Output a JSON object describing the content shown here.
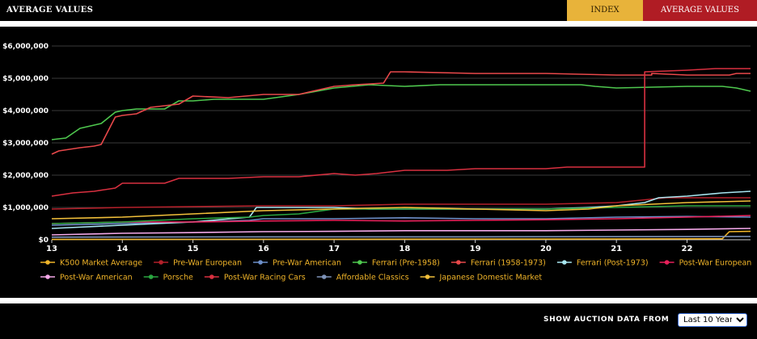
{
  "header": {
    "title": "AVERAGE VALUES",
    "tab_index": "INDEX",
    "tab_average": "AVERAGE VALUES"
  },
  "footer": {
    "label": "SHOW AUCTION DATA FROM",
    "select_value": "Last 10 Years"
  },
  "chart_data": {
    "type": "line",
    "x_ticks": [
      "13",
      "14",
      "15",
      "16",
      "17",
      "18",
      "19",
      "20",
      "21",
      "22"
    ],
    "xlim": [
      2013,
      2022.9
    ],
    "y_ticks": [
      "$0",
      "$1,000,000",
      "$2,000,000",
      "$3,000,000",
      "$4,000,000",
      "$5,000,000",
      "$6,000,000"
    ],
    "ylim": [
      0,
      6000000
    ],
    "grid": true,
    "legend_position": "bottom",
    "series": [
      {
        "name": "K500 Market Average",
        "color": "#f0b429",
        "points": [
          [
            2013,
            10000
          ],
          [
            2017,
            15000
          ],
          [
            2020,
            20000
          ],
          [
            2022.5,
            30000
          ],
          [
            2022.6,
            250000
          ],
          [
            2022.9,
            260000
          ]
        ]
      },
      {
        "name": "Pre-War European",
        "color": "#b3202a",
        "points": [
          [
            2013,
            950000
          ],
          [
            2014,
            1000000
          ],
          [
            2016,
            1050000
          ],
          [
            2017,
            1050000
          ],
          [
            2018,
            1100000
          ],
          [
            2019,
            1100000
          ],
          [
            2020,
            1100000
          ],
          [
            2021,
            1150000
          ],
          [
            2021.7,
            1300000
          ],
          [
            2022.9,
            1300000
          ]
        ]
      },
      {
        "name": "Pre-War American",
        "color": "#6d8fc9",
        "points": [
          [
            2013,
            450000
          ],
          [
            2014,
            500000
          ],
          [
            2015,
            550000
          ],
          [
            2015.8,
            600000
          ],
          [
            2016,
            650000
          ],
          [
            2017,
            650000
          ],
          [
            2018,
            680000
          ],
          [
            2019,
            650000
          ],
          [
            2020,
            650000
          ],
          [
            2021,
            700000
          ],
          [
            2022,
            720000
          ],
          [
            2022.9,
            700000
          ]
        ]
      },
      {
        "name": "Ferrari (Pre-1958)",
        "color": "#4fc94f",
        "points": [
          [
            2013,
            3100000
          ],
          [
            2013.2,
            3150000
          ],
          [
            2013.4,
            3450000
          ],
          [
            2013.7,
            3600000
          ],
          [
            2013.9,
            3950000
          ],
          [
            2014,
            4000000
          ],
          [
            2014.2,
            4050000
          ],
          [
            2014.6,
            4050000
          ],
          [
            2014.8,
            4300000
          ],
          [
            2015,
            4300000
          ],
          [
            2015.3,
            4350000
          ],
          [
            2016,
            4350000
          ],
          [
            2016.5,
            4500000
          ],
          [
            2017,
            4700000
          ],
          [
            2017.5,
            4800000
          ],
          [
            2018,
            4750000
          ],
          [
            2018.5,
            4800000
          ],
          [
            2019,
            4800000
          ],
          [
            2020,
            4800000
          ],
          [
            2020.5,
            4800000
          ],
          [
            2020.7,
            4750000
          ],
          [
            2021,
            4700000
          ],
          [
            2022,
            4750000
          ],
          [
            2022.5,
            4750000
          ],
          [
            2022.7,
            4700000
          ],
          [
            2022.9,
            4600000
          ]
        ]
      },
      {
        "name": "Ferrari (1958-1973)",
        "color": "#e8484a",
        "points": [
          [
            2013,
            2650000
          ],
          [
            2013.1,
            2750000
          ],
          [
            2013.4,
            2850000
          ],
          [
            2013.6,
            2900000
          ],
          [
            2013.7,
            2950000
          ],
          [
            2013.9,
            3800000
          ],
          [
            2014,
            3850000
          ],
          [
            2014.2,
            3900000
          ],
          [
            2014.4,
            4100000
          ],
          [
            2014.8,
            4200000
          ],
          [
            2015,
            4450000
          ],
          [
            2015.5,
            4400000
          ],
          [
            2016,
            4500000
          ],
          [
            2016.5,
            4500000
          ],
          [
            2017,
            4750000
          ],
          [
            2017.3,
            4800000
          ],
          [
            2017.7,
            4850000
          ],
          [
            2017.8,
            5200000
          ],
          [
            2018,
            5200000
          ],
          [
            2019,
            5150000
          ],
          [
            2020,
            5150000
          ],
          [
            2021,
            5100000
          ],
          [
            2021.5,
            5100000
          ],
          [
            2021.5,
            5150000
          ],
          [
            2022,
            5100000
          ],
          [
            2022.6,
            5100000
          ],
          [
            2022.7,
            5150000
          ],
          [
            2022.9,
            5150000
          ]
        ]
      },
      {
        "name": "Ferrari (Post-1973)",
        "color": "#a8e6f0",
        "points": [
          [
            2013,
            350000
          ],
          [
            2014,
            450000
          ],
          [
            2015,
            550000
          ],
          [
            2015.8,
            700000
          ],
          [
            2015.9,
            1000000
          ],
          [
            2016,
            1000000
          ],
          [
            2017,
            1000000
          ],
          [
            2017.5,
            950000
          ],
          [
            2018,
            950000
          ],
          [
            2019,
            950000
          ],
          [
            2020,
            950000
          ],
          [
            2020.6,
            1000000
          ],
          [
            2021,
            1050000
          ],
          [
            2021.4,
            1150000
          ],
          [
            2021.6,
            1300000
          ],
          [
            2022,
            1350000
          ],
          [
            2022.5,
            1450000
          ],
          [
            2022.9,
            1500000
          ]
        ]
      },
      {
        "name": "Post-War European",
        "color": "#e8205a",
        "points": [
          [
            2013,
            500000
          ],
          [
            2014,
            550000
          ],
          [
            2015,
            550000
          ],
          [
            2016,
            580000
          ],
          [
            2017,
            600000
          ],
          [
            2018,
            580000
          ],
          [
            2019,
            600000
          ],
          [
            2020,
            620000
          ],
          [
            2021,
            650000
          ],
          [
            2022,
            700000
          ],
          [
            2022.9,
            750000
          ]
        ]
      },
      {
        "name": "Post-War American",
        "color": "#f4a8e8",
        "points": [
          [
            2013,
            150000
          ],
          [
            2014,
            200000
          ],
          [
            2015,
            220000
          ],
          [
            2016,
            250000
          ],
          [
            2017,
            260000
          ],
          [
            2018,
            280000
          ],
          [
            2019,
            280000
          ],
          [
            2020,
            280000
          ],
          [
            2021,
            300000
          ],
          [
            2022,
            320000
          ],
          [
            2022.9,
            350000
          ]
        ]
      },
      {
        "name": "Porsche",
        "color": "#2aa640",
        "points": [
          [
            2013,
            500000
          ],
          [
            2014,
            550000
          ],
          [
            2015,
            650000
          ],
          [
            2015.8,
            700000
          ],
          [
            2016,
            750000
          ],
          [
            2016.5,
            800000
          ],
          [
            2017,
            950000
          ],
          [
            2018,
            950000
          ],
          [
            2019,
            950000
          ],
          [
            2020,
            950000
          ],
          [
            2021,
            1000000
          ],
          [
            2022,
            1050000
          ],
          [
            2022.9,
            1050000
          ]
        ]
      },
      {
        "name": "Post-War Racing Cars",
        "color": "#d93040",
        "points": [
          [
            2013,
            1350000
          ],
          [
            2013.3,
            1450000
          ],
          [
            2013.6,
            1500000
          ],
          [
            2013.9,
            1600000
          ],
          [
            2014,
            1750000
          ],
          [
            2014.6,
            1750000
          ],
          [
            2014.8,
            1900000
          ],
          [
            2015.5,
            1900000
          ],
          [
            2016,
            1950000
          ],
          [
            2016.5,
            1950000
          ],
          [
            2017,
            2050000
          ],
          [
            2017.3,
            2000000
          ],
          [
            2017.6,
            2050000
          ],
          [
            2018,
            2150000
          ],
          [
            2018.6,
            2150000
          ],
          [
            2019,
            2200000
          ],
          [
            2020,
            2200000
          ],
          [
            2020.3,
            2250000
          ],
          [
            2021,
            2250000
          ],
          [
            2021.4,
            2250000
          ],
          [
            2021.4,
            5200000
          ],
          [
            2022,
            5250000
          ],
          [
            2022.4,
            5300000
          ],
          [
            2022.9,
            5300000
          ]
        ]
      },
      {
        "name": "Affordable Classics",
        "color": "#7e93b8",
        "points": [
          [
            2013,
            80000
          ],
          [
            2016,
            90000
          ],
          [
            2019,
            90000
          ],
          [
            2022.9,
            100000
          ]
        ]
      },
      {
        "name": "Japanese Domestic Market",
        "color": "#f2c03a",
        "points": [
          [
            2013,
            650000
          ],
          [
            2014,
            700000
          ],
          [
            2015,
            800000
          ],
          [
            2016,
            900000
          ],
          [
            2017,
            950000
          ],
          [
            2018,
            1000000
          ],
          [
            2019,
            950000
          ],
          [
            2020,
            900000
          ],
          [
            2020.6,
            950000
          ],
          [
            2021,
            1050000
          ],
          [
            2022,
            1150000
          ],
          [
            2022.9,
            1200000
          ]
        ]
      }
    ]
  }
}
